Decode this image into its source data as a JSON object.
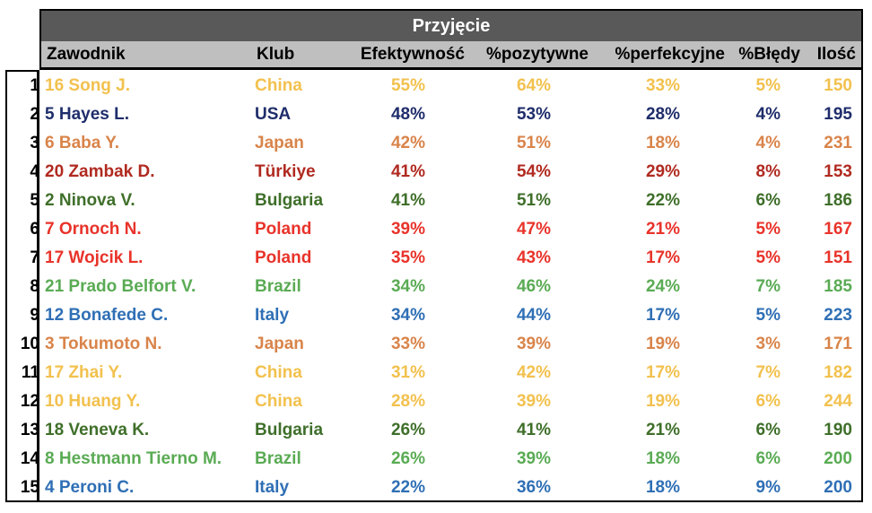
{
  "title": "Przyjęcie",
  "headers": [
    "Zawodnik",
    "Klub",
    "Efektywność",
    "%pozytywne",
    "%perfekcyjne",
    "%Błędy",
    "Ilość"
  ],
  "rows": [
    {
      "idx": "1",
      "player": "16 Song J.",
      "club": "China",
      "eff": "55%",
      "pos": "64%",
      "perf": "33%",
      "err": "5%",
      "count": "150",
      "color": "#f2c14e"
    },
    {
      "idx": "2",
      "player": "5 Hayes L.",
      "club": "USA",
      "eff": "48%",
      "pos": "53%",
      "perf": "28%",
      "err": "4%",
      "count": "195",
      "color": "#1f2d6b"
    },
    {
      "idx": "3",
      "player": "6 Baba Y.",
      "club": "Japan",
      "eff": "42%",
      "pos": "51%",
      "perf": "18%",
      "err": "4%",
      "count": "231",
      "color": "#d9844a"
    },
    {
      "idx": "4",
      "player": "20 Zambak D.",
      "club": "Türkiye",
      "eff": "41%",
      "pos": "54%",
      "perf": "29%",
      "err": "8%",
      "count": "153",
      "color": "#b02a20"
    },
    {
      "idx": "5",
      "player": "2 Ninova V.",
      "club": "Bulgaria",
      "eff": "41%",
      "pos": "51%",
      "perf": "22%",
      "err": "6%",
      "count": "186",
      "color": "#3f6f2a"
    },
    {
      "idx": "6",
      "player": "7 Ornoch N.",
      "club": "Poland",
      "eff": "39%",
      "pos": "47%",
      "perf": "21%",
      "err": "5%",
      "count": "167",
      "color": "#e8332a"
    },
    {
      "idx": "7",
      "player": "17 Wojcik L.",
      "club": "Poland",
      "eff": "35%",
      "pos": "43%",
      "perf": "17%",
      "err": "5%",
      "count": "151",
      "color": "#e8332a"
    },
    {
      "idx": "8",
      "player": "21 Prado Belfort V.",
      "club": "Brazil",
      "eff": "34%",
      "pos": "46%",
      "perf": "24%",
      "err": "7%",
      "count": "185",
      "color": "#5aab54"
    },
    {
      "idx": "9",
      "player": "12 Bonafede C.",
      "club": "Italy",
      "eff": "34%",
      "pos": "44%",
      "perf": "17%",
      "err": "5%",
      "count": "223",
      "color": "#2f6fb5"
    },
    {
      "idx": "10",
      "player": "3 Tokumoto N.",
      "club": "Japan",
      "eff": "33%",
      "pos": "39%",
      "perf": "19%",
      "err": "3%",
      "count": "171",
      "color": "#d9844a"
    },
    {
      "idx": "11",
      "player": "17 Zhai Y.",
      "club": "China",
      "eff": "31%",
      "pos": "42%",
      "perf": "17%",
      "err": "7%",
      "count": "182",
      "color": "#f2c14e"
    },
    {
      "idx": "12",
      "player": "10 Huang Y.",
      "club": "China",
      "eff": "28%",
      "pos": "39%",
      "perf": "19%",
      "err": "6%",
      "count": "244",
      "color": "#f2c14e"
    },
    {
      "idx": "13",
      "player": "18 Veneva K.",
      "club": "Bulgaria",
      "eff": "26%",
      "pos": "41%",
      "perf": "21%",
      "err": "6%",
      "count": "190",
      "color": "#3f6f2a"
    },
    {
      "idx": "14",
      "player": "8 Hestmann Tierno M.",
      "club": "Brazil",
      "eff": "26%",
      "pos": "39%",
      "perf": "18%",
      "err": "6%",
      "count": "200",
      "color": "#5aab54"
    },
    {
      "idx": "15",
      "player": "4 Peroni C.",
      "club": "Italy",
      "eff": "22%",
      "pos": "36%",
      "perf": "18%",
      "err": "9%",
      "count": "200",
      "color": "#2f6fb5"
    }
  ]
}
